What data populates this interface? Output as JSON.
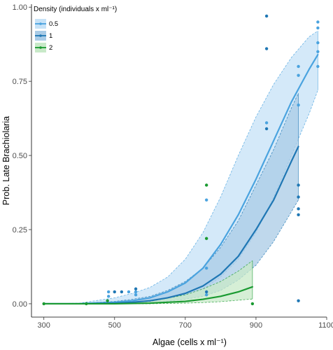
{
  "chart_data": {
    "type": "line",
    "title": "",
    "xlabel": "Algae (cells x ml⁻¹)",
    "ylabel": "Prob. Late Brachiolaria",
    "xlim": [
      265,
      1100
    ],
    "ylim": [
      -0.045,
      1.01
    ],
    "x_ticks": [
      300,
      500,
      700,
      900,
      1100
    ],
    "x_tick_labels": [
      "300",
      "500",
      "700",
      "900",
      "1100"
    ],
    "y_ticks": [
      0,
      0.25,
      0.5,
      0.75,
      1
    ],
    "y_tick_labels": [
      "0.00",
      "0.25",
      "0.50",
      "0.75",
      "1.00"
    ],
    "grid": false,
    "legend": {
      "title": "Density (individuals x ml⁻¹)",
      "placement": "top-left"
    },
    "series": [
      {
        "name": "0.5",
        "color": "#4aa3df",
        "fill": "#c6e2f7",
        "x": [
          300,
          400,
          500,
          550,
          600,
          650,
          700,
          750,
          800,
          850,
          900,
          950,
          1000,
          1050,
          1075
        ],
        "y": [
          0.0,
          0.0,
          0.005,
          0.01,
          0.02,
          0.04,
          0.07,
          0.12,
          0.2,
          0.3,
          0.42,
          0.55,
          0.68,
          0.79,
          0.84
        ],
        "lower": [
          0.0,
          0.0,
          0.0,
          0.003,
          0.008,
          0.015,
          0.03,
          0.05,
          0.09,
          0.15,
          0.24,
          0.36,
          0.5,
          0.64,
          0.72
        ],
        "upper": [
          0.0,
          0.002,
          0.02,
          0.035,
          0.055,
          0.09,
          0.15,
          0.24,
          0.36,
          0.5,
          0.63,
          0.74,
          0.83,
          0.9,
          0.92
        ],
        "points": [
          [
            483,
            0.04
          ],
          [
            483,
            0.025
          ],
          [
            540,
            0.04
          ],
          [
            560,
            0.04
          ],
          [
            560,
            0.03
          ],
          [
            760,
            0.35
          ],
          [
            760,
            0.12
          ],
          [
            760,
            0.03
          ],
          [
            930,
            0.61
          ],
          [
            1020,
            0.77
          ],
          [
            1020,
            0.67
          ],
          [
            1020,
            0.8
          ],
          [
            1075,
            0.95
          ],
          [
            1075,
            0.93
          ],
          [
            1075,
            0.88
          ],
          [
            1075,
            0.85
          ],
          [
            1075,
            0.8
          ]
        ]
      },
      {
        "name": "1",
        "color": "#1f77b4",
        "fill": "#a9cbe6",
        "x": [
          300,
          400,
          500,
          550,
          600,
          650,
          700,
          750,
          800,
          850,
          900,
          950,
          1000,
          1020
        ],
        "y": [
          0.0,
          0.0,
          0.002,
          0.005,
          0.01,
          0.02,
          0.035,
          0.06,
          0.1,
          0.16,
          0.25,
          0.35,
          0.48,
          0.53
        ],
        "lower": [
          0.0,
          0.0,
          0.0,
          0.0,
          0.003,
          0.008,
          0.015,
          0.025,
          0.045,
          0.08,
          0.13,
          0.21,
          0.31,
          0.35
        ],
        "upper": [
          0.0,
          0.001,
          0.008,
          0.015,
          0.025,
          0.045,
          0.075,
          0.12,
          0.19,
          0.28,
          0.4,
          0.52,
          0.66,
          0.71
        ],
        "points": [
          [
            500,
            0.04
          ],
          [
            520,
            0.04
          ],
          [
            560,
            0.05
          ],
          [
            760,
            0.04
          ],
          [
            930,
            0.97
          ],
          [
            930,
            0.86
          ],
          [
            930,
            0.59
          ],
          [
            1020,
            0.4
          ],
          [
            1020,
            0.36
          ],
          [
            1020,
            0.32
          ],
          [
            1020,
            0.3
          ],
          [
            1020,
            0.01
          ]
        ]
      },
      {
        "name": "2",
        "color": "#1a9a31",
        "fill": "#c8e9c8",
        "x": [
          300,
          400,
          500,
          600,
          700,
          750,
          800,
          850,
          890
        ],
        "y": [
          0.0,
          0.0,
          0.0,
          0.002,
          0.008,
          0.015,
          0.025,
          0.04,
          0.057
        ],
        "lower": [
          0.0,
          0.0,
          0.0,
          0.0,
          0.002,
          0.004,
          0.007,
          0.012,
          0.016
        ],
        "upper": [
          0.0,
          0.0,
          0.002,
          0.008,
          0.03,
          0.05,
          0.075,
          0.11,
          0.145
        ],
        "points": [
          [
            300,
            0.0
          ],
          [
            420,
            0.0
          ],
          [
            480,
            0.01
          ],
          [
            760,
            0.4
          ],
          [
            760,
            0.22
          ],
          [
            890,
            0.0
          ]
        ]
      }
    ]
  }
}
